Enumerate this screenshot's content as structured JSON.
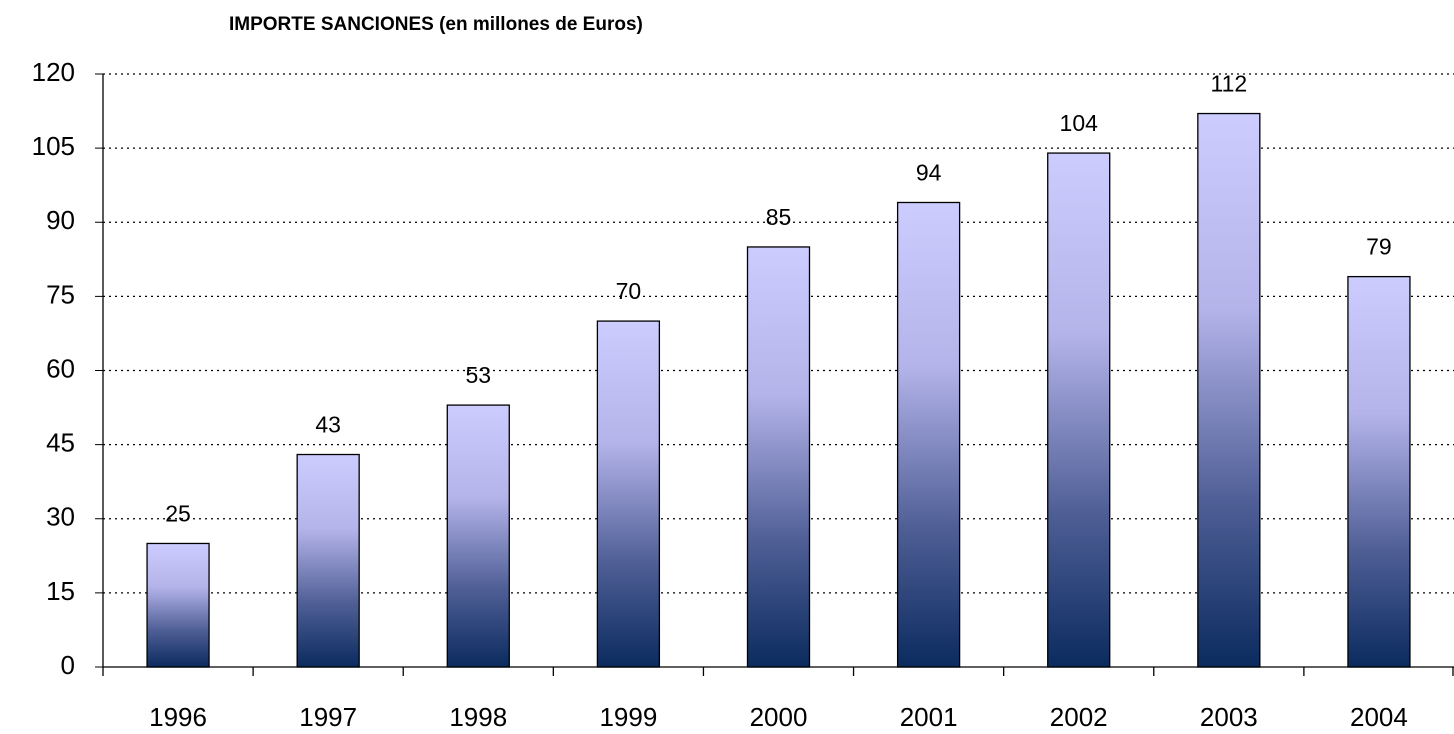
{
  "chart_data": {
    "type": "bar",
    "title": "IMPORTE SANCIONES  (en millones de Euros)",
    "categories": [
      "1996",
      "1997",
      "1998",
      "1999",
      "2000",
      "2001",
      "2002",
      "2003",
      "2004"
    ],
    "values": [
      25,
      43,
      53,
      70,
      85,
      94,
      104,
      112,
      79
    ],
    "color": "#0b2b5e",
    "ylim": [
      0,
      120
    ],
    "yticks": [
      0,
      15,
      30,
      45,
      60,
      75,
      90,
      105,
      120
    ],
    "grid": true
  }
}
